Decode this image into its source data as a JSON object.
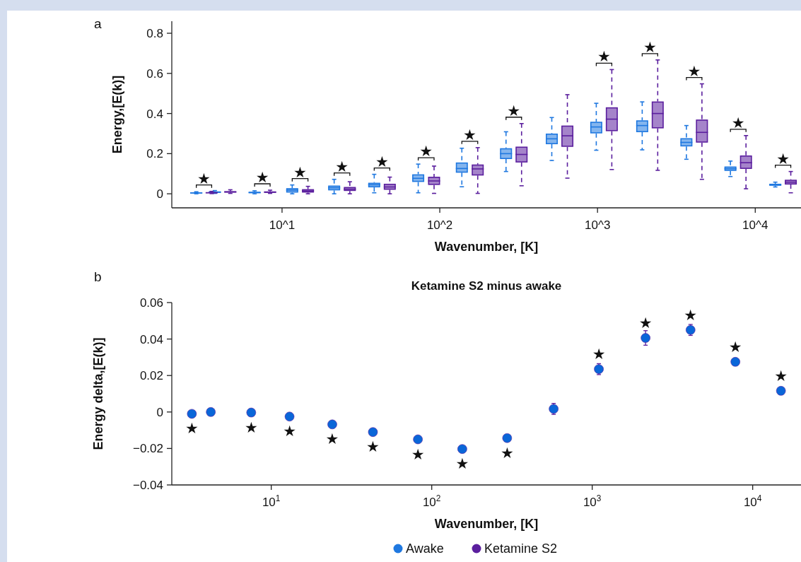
{
  "chart_data": [
    {
      "type": "box",
      "annotations": [
        "a",
        {
          "text": "★",
          "x": 3.58,
          "y": 0.012
        },
        {
          "text": "★",
          "x": 8.4,
          "y": 0.018
        },
        {
          "text": "★",
          "x": 11.6,
          "y": 0.044
        },
        {
          "text": "★",
          "x": 21.4,
          "y": 0.072
        },
        {
          "text": "★",
          "x": 38.4,
          "y": 0.097
        },
        {
          "text": "★",
          "x": 73,
          "y": 0.148
        },
        {
          "text": "★",
          "x": 174,
          "y": 0.23
        },
        {
          "text": "★",
          "x": 330,
          "y": 0.35
        },
        {
          "text": "★",
          "x": 1232,
          "y": 0.619
        },
        {
          "text": "★",
          "x": 2408,
          "y": 0.667
        },
        {
          "text": "★",
          "x": 4592,
          "y": 0.548
        },
        {
          "text": "★",
          "x": 8736,
          "y": 0.29
        },
        {
          "text": "★",
          "x": 16800,
          "y": 0.111
        }
      ],
      "xlabel": "Wavenumber, [K]",
      "ylabel": "Energy,[E(k)]",
      "log": "x",
      "xlim": [
        2,
        19500
      ],
      "xticks": [
        {
          "value": 10,
          "label": "10^1"
        },
        {
          "value": 100,
          "label": "10^2"
        },
        {
          "value": 1000,
          "label": "10^3"
        },
        {
          "value": 10000,
          "label": "10^4"
        }
      ],
      "ylim": [
        -0.07,
        0.86
      ],
      "yticks": [
        0,
        0.2,
        0.4,
        0.6,
        0.8
      ],
      "legend": "bottom",
      "line_style": "dashed",
      "series": [
        {
          "name": "Awake",
          "color": "#1f78e0",
          "x": [
            2.86,
            3.75,
            6.7,
            11.6,
            21.4,
            38.4,
            73,
            138,
            263,
            513,
            982,
            1920,
            3660,
            6960,
            13400
          ],
          "boxes": [
            {
              "low": 0,
              "q1": 0.002,
              "median": 0.004,
              "q3": 0.007,
              "high": 0.01
            },
            {
              "low": 0.002,
              "q1": 0.005,
              "median": 0.008,
              "q3": 0.012,
              "high": 0.016
            },
            {
              "low": 0,
              "q1": 0.003,
              "median": 0.006,
              "q3": 0.01,
              "high": 0.015
            },
            {
              "low": 0,
              "q1": 0.006,
              "median": 0.018,
              "q3": 0.028,
              "high": 0.044
            },
            {
              "low": 0,
              "q1": 0.017,
              "median": 0.03,
              "q3": 0.041,
              "high": 0.072
            },
            {
              "low": 0.005,
              "q1": 0.032,
              "median": 0.045,
              "q3": 0.055,
              "high": 0.097
            },
            {
              "low": 0.005,
              "q1": 0.059,
              "median": 0.077,
              "q3": 0.097,
              "high": 0.148
            },
            {
              "low": 0.035,
              "q1": 0.105,
              "median": 0.126,
              "q3": 0.156,
              "high": 0.227
            },
            {
              "low": 0.111,
              "q1": 0.173,
              "median": 0.2,
              "q3": 0.227,
              "high": 0.309
            },
            {
              "low": 0.166,
              "q1": 0.247,
              "median": 0.274,
              "q3": 0.3,
              "high": 0.38
            },
            {
              "low": 0.217,
              "q1": 0.301,
              "median": 0.333,
              "q3": 0.359,
              "high": 0.451
            },
            {
              "low": 0.219,
              "q1": 0.307,
              "median": 0.34,
              "q3": 0.366,
              "high": 0.458
            },
            {
              "low": 0.172,
              "q1": 0.236,
              "median": 0.256,
              "q3": 0.277,
              "high": 0.34
            },
            {
              "low": 0.086,
              "q1": 0.114,
              "median": 0.125,
              "q3": 0.136,
              "high": 0.163
            },
            {
              "low": 0.034,
              "q1": 0.04,
              "median": 0.045,
              "q3": 0.05,
              "high": 0.058
            }
          ]
        },
        {
          "name": "Ketamine S2",
          "color": "#5b1f9e",
          "x": [
            3.58,
            4.7,
            8.4,
            14.6,
            26.9,
            48.2,
            92,
            174,
            330,
            644,
            1232,
            2408,
            4592,
            8736,
            16800
          ],
          "boxes": [
            {
              "low": 0.001,
              "q1": 0.003,
              "median": 0.005,
              "q3": 0.008,
              "high": 0.012
            },
            {
              "low": 0.002,
              "q1": 0.006,
              "median": 0.009,
              "q3": 0.013,
              "high": 0.02
            },
            {
              "low": 0.002,
              "q1": 0.005,
              "median": 0.008,
              "q3": 0.012,
              "high": 0.018
            },
            {
              "low": 0,
              "q1": 0.006,
              "median": 0.014,
              "q3": 0.023,
              "high": 0.037
            },
            {
              "low": 0,
              "q1": 0.014,
              "median": 0.023,
              "q3": 0.034,
              "high": 0.06
            },
            {
              "low": 0,
              "q1": 0.02,
              "median": 0.034,
              "q3": 0.05,
              "high": 0.083
            },
            {
              "low": 0.002,
              "q1": 0.044,
              "median": 0.064,
              "q3": 0.085,
              "high": 0.138
            },
            {
              "low": 0.002,
              "q1": 0.091,
              "median": 0.124,
              "q3": 0.146,
              "high": 0.23
            },
            {
              "low": 0.04,
              "q1": 0.156,
              "median": 0.196,
              "q3": 0.235,
              "high": 0.35
            },
            {
              "low": 0.078,
              "q1": 0.234,
              "median": 0.289,
              "q3": 0.34,
              "high": 0.494
            },
            {
              "low": 0.121,
              "q1": 0.312,
              "median": 0.372,
              "q3": 0.431,
              "high": 0.619
            },
            {
              "low": 0.117,
              "q1": 0.326,
              "median": 0.4,
              "q3": 0.46,
              "high": 0.667
            },
            {
              "low": 0.072,
              "q1": 0.255,
              "median": 0.306,
              "q3": 0.37,
              "high": 0.548
            },
            {
              "low": 0.025,
              "q1": 0.124,
              "median": 0.155,
              "q3": 0.191,
              "high": 0.29
            },
            {
              "low": 0.005,
              "q1": 0.046,
              "median": 0.058,
              "q3": 0.07,
              "high": 0.111
            }
          ]
        }
      ]
    },
    {
      "type": "scatter",
      "title": "Ketamine S2 minus awake",
      "annotations": [
        "b",
        {
          "text": "★",
          "x": 3.2,
          "y": -0.001
        },
        {
          "text": "★",
          "x": 7.5,
          "y": -0.0003
        },
        {
          "text": "★",
          "x": 13,
          "y": -0.0025
        },
        {
          "text": "★",
          "x": 24,
          "y": -0.0068
        },
        {
          "text": "★",
          "x": 43,
          "y": -0.011
        },
        {
          "text": "★",
          "x": 82,
          "y": -0.015
        },
        {
          "text": "★",
          "x": 155,
          "y": -0.0203
        },
        {
          "text": "★",
          "x": 295,
          "y": -0.0143
        },
        {
          "text": "★",
          "x": 1100,
          "y": 0.0235
        },
        {
          "text": "★",
          "x": 2150,
          "y": 0.0406
        },
        {
          "text": "★",
          "x": 4100,
          "y": 0.045
        },
        {
          "text": "★",
          "x": 7800,
          "y": 0.0275
        },
        {
          "text": "★",
          "x": 15000,
          "y": 0.0116
        }
      ],
      "xlabel": "Wavenumber, [K]",
      "ylabel": "Energy delta,[E(k)]",
      "log": "x",
      "marker": "circle",
      "x": [
        3.2,
        4.2,
        7.5,
        13,
        24,
        43,
        82,
        155,
        295,
        575,
        1100,
        2150,
        4100,
        7800,
        15000
      ],
      "xlim": [
        2.4,
        20000
      ],
      "xticks": [
        {
          "value": 10,
          "label": "10$^{1}$"
        },
        {
          "value": 100,
          "label": "10$^{2}$"
        },
        {
          "value": 1000,
          "label": "10$^{3}$"
        },
        {
          "value": 10000,
          "label": "10$^{4}$"
        }
      ],
      "ylim": [
        -0.04,
        0.06
      ],
      "yticks": [
        {
          "value": -0.04,
          "label": "−0.04"
        },
        {
          "value": -0.02,
          "label": "−0.02"
        },
        0,
        0.02,
        0.04,
        0.06
      ],
      "series": [
        {
          "color": "#0a66d8",
          "values": [
            -0.001,
            0,
            -0.0003,
            -0.0025,
            -0.0068,
            -0.011,
            -0.015,
            -0.0203,
            -0.0143,
            0.0017,
            0.0235,
            0.0406,
            0.045,
            0.0275,
            0.0116
          ],
          "errors": [
            null,
            null,
            null,
            null,
            null,
            null,
            null,
            null,
            null,
            0.003,
            0.003,
            0.004,
            0.003,
            null,
            null
          ]
        }
      ]
    }
  ]
}
